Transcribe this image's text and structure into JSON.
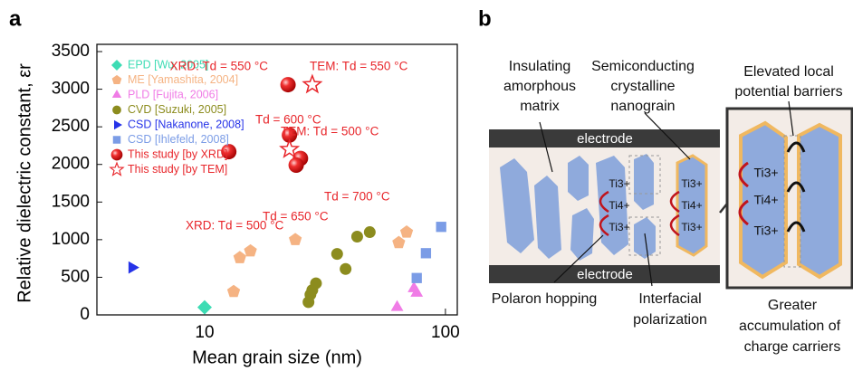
{
  "panel_a_label": "a",
  "chart_data": {
    "type": "scatter",
    "x_label": "Mean grain size (nm)",
    "y_label": "Relative dielectric constant, εr",
    "xlog": true,
    "xlim": [
      3.57,
      112
    ],
    "xticks": [
      10,
      100
    ],
    "ylim": [
      0,
      3500
    ],
    "yticks": [
      0,
      500,
      1000,
      1500,
      2000,
      2500,
      3000,
      3500
    ],
    "legend": "upper left",
    "series": [
      {
        "name": "EPD [Wu, 2005]",
        "color": "#3ddcb4",
        "marker": "diamond",
        "x": [
          10
        ],
        "values": [
          100
        ]
      },
      {
        "name": "ME [Yamashita, 2004]",
        "color": "#f5b383",
        "marker": "pentagon",
        "x": [
          13.2,
          14,
          15.5,
          23.8,
          64,
          69
        ],
        "values": [
          310,
          760,
          850,
          1000,
          960,
          1100
        ]
      },
      {
        "name": "PLD [Fujita, 2006]",
        "color": "#f07ce6",
        "marker": "triangle-up",
        "x": [
          63,
          74,
          76
        ],
        "values": [
          100,
          350,
          290
        ]
      },
      {
        "name": "CVD [Suzuki, 2005]",
        "color": "#8c8c1e",
        "marker": "circle",
        "x": [
          27,
          27.5,
          28,
          29,
          35.5,
          38.5,
          43,
          48.5
        ],
        "values": [
          170,
          270,
          330,
          420,
          810,
          610,
          1040,
          1100
        ]
      },
      {
        "name": "CSD [Nakanone, 2008]",
        "color": "#2633e8",
        "marker": "triangle-right",
        "x": [
          5
        ],
        "values": [
          630
        ]
      },
      {
        "name": "CSD [Ihlefeld, 2008]",
        "color": "#7b9ce6",
        "marker": "square",
        "x": [
          76,
          83,
          96
        ],
        "values": [
          490,
          820,
          1170
        ]
      },
      {
        "name": "This study [by XRD]",
        "color": "#e8262b",
        "marker": "sphere",
        "x": [
          22.2,
          12.6,
          22.5,
          25,
          24
        ],
        "values": [
          3060,
          2170,
          2390,
          2080,
          1990
        ]
      },
      {
        "name": "This study [by TEM]",
        "color": "#e8262b",
        "marker": "star",
        "x": [
          28,
          22.5
        ],
        "values": [
          3060,
          2200
        ]
      }
    ],
    "annotations": [
      "XRD: Td = 550 °C",
      "TEM: Td = 550 °C",
      "Td = 600 °C",
      "TEM: Td = 500 °C",
      "XRD: Td = 500 °C",
      "Td = 700 °C",
      "Td = 650 °C"
    ]
  },
  "panel_b": {
    "label": "b",
    "matrix_label": [
      "Insulating",
      "amorphous",
      "matrix"
    ],
    "nanograin_label": [
      "Semiconducting",
      "crystalline",
      "nanograin"
    ],
    "barrier_label": [
      "Elevated local",
      "potential barriers"
    ],
    "electrodes": [
      "electrode",
      "electrode"
    ],
    "polaron_label": "Polaron hopping",
    "interfacial_label": [
      "Interfacial",
      "polarization"
    ],
    "accumulation_label": [
      "Greater",
      "accumulation of",
      "charge carriers"
    ],
    "ions": [
      "Ti3+",
      "Ti4+",
      "Ti3+",
      "Ti3+",
      "Ti4+",
      "Ti3+",
      "Ti3+",
      "Ti4+",
      "Ti3+"
    ]
  }
}
